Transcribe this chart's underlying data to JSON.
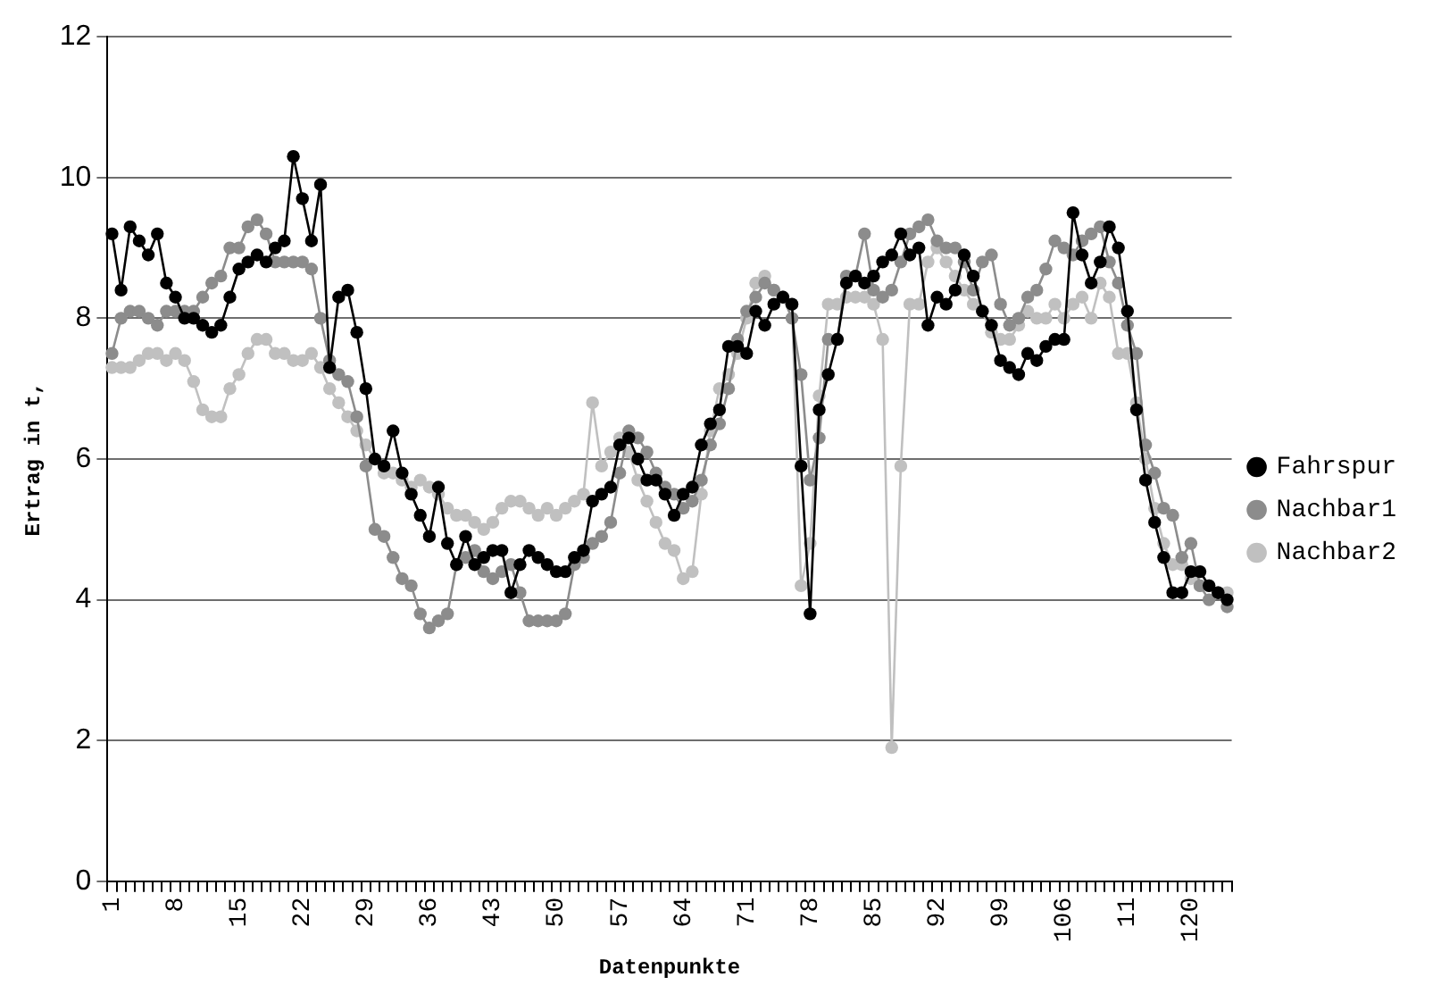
{
  "chart_data": {
    "type": "line",
    "xlabel": "Datenpunkte",
    "ylabel": "Ertrag in t,",
    "categories": [
      "1",
      null,
      null,
      null,
      null,
      null,
      null,
      "8",
      null,
      null,
      null,
      null,
      null,
      null,
      "15",
      null,
      null,
      null,
      null,
      null,
      null,
      "22",
      null,
      null,
      null,
      null,
      null,
      null,
      "29",
      null,
      null,
      null,
      null,
      null,
      null,
      "36",
      null,
      null,
      null,
      null,
      null,
      null,
      "43",
      null,
      null,
      null,
      null,
      null,
      null,
      "50",
      null,
      null,
      null,
      null,
      null,
      null,
      "57",
      null,
      null,
      null,
      null,
      null,
      null,
      "64",
      null,
      null,
      null,
      null,
      null,
      null,
      "71",
      null,
      null,
      null,
      null,
      null,
      null,
      "78",
      null,
      null,
      null,
      null,
      null,
      null,
      "85",
      null,
      null,
      null,
      null,
      null,
      null,
      "92",
      null,
      null,
      null,
      null,
      null,
      null,
      "99",
      null,
      null,
      null,
      null,
      null,
      null,
      "106",
      null,
      null,
      null,
      null,
      null,
      null,
      "11",
      null,
      null,
      null,
      null,
      null,
      null,
      "120",
      null,
      null,
      null,
      null
    ],
    "series": [
      {
        "name": "Fahrspur",
        "color": "#000000",
        "values": [
          9.2,
          8.4,
          9.3,
          9.1,
          8.9,
          9.2,
          8.5,
          8.3,
          8.0,
          8.0,
          7.9,
          7.8,
          7.9,
          8.3,
          8.7,
          8.8,
          8.9,
          8.8,
          9.0,
          9.1,
          10.3,
          9.7,
          9.1,
          9.9,
          7.3,
          8.3,
          8.4,
          7.8,
          7.0,
          6.0,
          5.9,
          6.4,
          5.8,
          5.5,
          5.2,
          4.9,
          5.6,
          4.8,
          4.5,
          4.9,
          4.5,
          4.6,
          4.7,
          4.7,
          4.1,
          4.5,
          4.7,
          4.6,
          4.5,
          4.4,
          4.4,
          4.6,
          4.7,
          5.4,
          5.5,
          5.6,
          6.2,
          6.3,
          6.0,
          5.7,
          5.7,
          5.5,
          5.2,
          5.5,
          5.6,
          6.2,
          6.5,
          6.7,
          7.6,
          7.6,
          7.5,
          8.1,
          7.9,
          8.2,
          8.3,
          8.2,
          5.9,
          3.8,
          6.7,
          7.2,
          7.7,
          8.5,
          8.6,
          8.5,
          8.6,
          8.8,
          8.9,
          9.2,
          8.9,
          9.0,
          7.9,
          8.3,
          8.2,
          8.4,
          8.9,
          8.6,
          8.1,
          7.9,
          7.4,
          7.3,
          7.2,
          7.5,
          7.4,
          7.6,
          7.7,
          7.7,
          9.5,
          8.9,
          8.5,
          8.8,
          9.3,
          9.0,
          8.1,
          6.7,
          5.7,
          5.1,
          4.6,
          4.1,
          4.1,
          4.4,
          4.4,
          4.2,
          4.1,
          4.0
        ]
      },
      {
        "name": "Nachbar1",
        "color": "#8c8c8c",
        "values": [
          7.5,
          8.0,
          8.1,
          8.1,
          8.0,
          7.9,
          8.1,
          8.1,
          8.1,
          8.1,
          8.3,
          8.5,
          8.6,
          9.0,
          9.0,
          9.3,
          9.4,
          9.2,
          8.8,
          8.8,
          8.8,
          8.8,
          8.7,
          8.0,
          7.4,
          7.2,
          7.1,
          6.6,
          5.9,
          5.0,
          4.9,
          4.6,
          4.3,
          4.2,
          3.8,
          3.6,
          3.7,
          3.8,
          4.5,
          4.6,
          4.7,
          4.4,
          4.3,
          4.4,
          4.5,
          4.1,
          3.7,
          3.7,
          3.7,
          3.7,
          3.8,
          4.5,
          4.6,
          4.8,
          4.9,
          5.1,
          5.8,
          6.4,
          6.3,
          6.1,
          5.8,
          5.6,
          5.5,
          5.3,
          5.4,
          5.7,
          6.2,
          6.5,
          7.0,
          7.7,
          8.1,
          8.3,
          8.5,
          8.4,
          8.3,
          8.0,
          7.2,
          5.7,
          6.3,
          7.7,
          7.7,
          8.6,
          8.6,
          9.2,
          8.4,
          8.3,
          8.4,
          8.8,
          9.2,
          9.3,
          9.4,
          9.1,
          9.0,
          9.0,
          8.8,
          8.4,
          8.8,
          8.9,
          8.2,
          7.9,
          8.0,
          8.3,
          8.4,
          8.7,
          9.1,
          9.0,
          8.9,
          9.1,
          9.2,
          9.3,
          8.8,
          8.5,
          7.9,
          7.5,
          6.2,
          5.8,
          5.3,
          5.2,
          4.6,
          4.8,
          4.2,
          4.0,
          4.1,
          3.9
        ]
      },
      {
        "name": "Nachbar2",
        "color": "#c0c0c0",
        "values": [
          7.3,
          7.3,
          7.3,
          7.4,
          7.5,
          7.5,
          7.4,
          7.5,
          7.4,
          7.1,
          6.7,
          6.6,
          6.6,
          7.0,
          7.2,
          7.5,
          7.7,
          7.7,
          7.5,
          7.5,
          7.4,
          7.4,
          7.5,
          7.3,
          7.0,
          6.8,
          6.6,
          6.4,
          6.2,
          6.0,
          5.8,
          5.8,
          5.7,
          5.6,
          5.7,
          5.6,
          5.5,
          5.3,
          5.2,
          5.2,
          5.1,
          5.0,
          5.1,
          5.3,
          5.4,
          5.4,
          5.3,
          5.2,
          5.3,
          5.2,
          5.3,
          5.4,
          5.5,
          6.8,
          5.9,
          6.1,
          6.3,
          6.1,
          5.7,
          5.4,
          5.1,
          4.8,
          4.7,
          4.3,
          4.4,
          5.5,
          6.4,
          7.0,
          7.2,
          7.5,
          8.0,
          8.5,
          8.6,
          8.4,
          8.3,
          8.2,
          4.2,
          4.8,
          6.9,
          8.2,
          8.2,
          8.3,
          8.3,
          8.3,
          8.2,
          7.7,
          1.9,
          5.9,
          8.2,
          8.2,
          8.8,
          9.0,
          8.8,
          8.6,
          8.4,
          8.2,
          8.1,
          7.8,
          7.7,
          7.7,
          7.9,
          8.1,
          8.0,
          8.0,
          8.2,
          8.0,
          8.2,
          8.3,
          8.0,
          8.5,
          8.3,
          7.5,
          7.5,
          6.8,
          6.0,
          5.3,
          4.8,
          4.5,
          4.5,
          4.3,
          4.2,
          4.2,
          4.1,
          4.1
        ]
      }
    ],
    "ylim": [
      0,
      12
    ],
    "yticks": [
      0,
      2,
      4,
      6,
      8,
      10,
      12
    ],
    "grid": "y",
    "legend": "right",
    "marker": "circle",
    "line_style": "solid"
  }
}
